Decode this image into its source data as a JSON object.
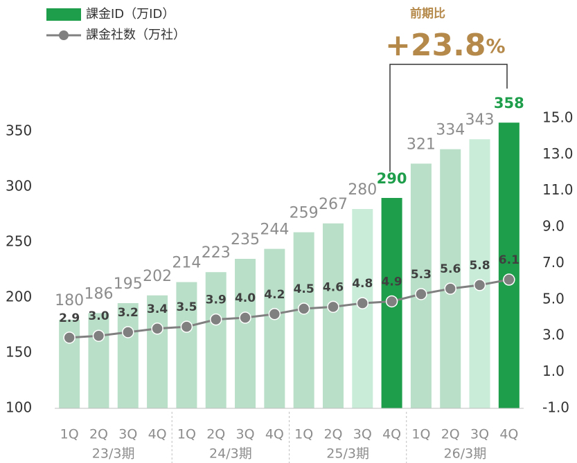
{
  "chart_data": {
    "type": "bar_line",
    "categories": [
      "1Q",
      "2Q",
      "3Q",
      "4Q",
      "1Q",
      "2Q",
      "3Q",
      "4Q",
      "1Q",
      "2Q",
      "3Q",
      "4Q",
      "1Q",
      "2Q",
      "3Q",
      "4Q"
    ],
    "groups": [
      "23/3期",
      "24/3期",
      "25/3期",
      "26/3期"
    ],
    "series": [
      {
        "name": "課金ID（万ID）",
        "color": "#1e9e4a",
        "values": [
          180,
          186,
          195,
          202,
          214,
          223,
          235,
          244,
          259,
          267,
          280,
          290,
          321,
          334,
          343,
          358
        ],
        "colors": [
          "#b9dfc8",
          "#b9dfc8",
          "#b9dfc8",
          "#b9dfc8",
          "#b9dfc8",
          "#b9dfc8",
          "#b9dfc8",
          "#b9dfc8",
          "#b9dfc8",
          "#b9dfc8",
          "#c8ecd8",
          "#1e9e4a",
          "#b9dfc8",
          "#b9dfc8",
          "#c8ecd8",
          "#1e9e4a"
        ],
        "label_colors": [
          "#8c8c8c",
          "#8c8c8c",
          "#8c8c8c",
          "#8c8c8c",
          "#8c8c8c",
          "#8c8c8c",
          "#8c8c8c",
          "#8c8c8c",
          "#8c8c8c",
          "#8c8c8c",
          "#8c8c8c",
          "#1e9e4a",
          "#8c8c8c",
          "#8c8c8c",
          "#8c8c8c",
          "#1e9e4a"
        ]
      },
      {
        "name": "課金社数（万社）",
        "color": "#808080",
        "axis": "y2",
        "values": [
          2.9,
          3.0,
          3.2,
          3.4,
          3.5,
          3.9,
          4.0,
          4.2,
          4.5,
          4.6,
          4.8,
          4.9,
          5.3,
          5.6,
          5.8,
          6.1
        ],
        "value_labels": [
          "2.9",
          "3.0",
          "3.2",
          "3.4",
          "3.5",
          "3.9",
          "4.0",
          "4.2",
          "4.5",
          "4.6",
          "4.8",
          "4.9",
          "5.3",
          "5.6",
          "5.8",
          "6.1"
        ]
      }
    ],
    "ylim": [
      100,
      375
    ],
    "yticks": [
      100,
      150,
      200,
      250,
      300,
      350
    ],
    "y2lim": [
      -1,
      15.8
    ],
    "y2ticks": [
      {
        "value": -1,
        "label": "-1.0"
      },
      {
        "value": 1,
        "label": "1.0"
      },
      {
        "value": 3,
        "label": "3.0"
      },
      {
        "value": 5,
        "label": "5.0"
      },
      {
        "value": 7,
        "label": "7.0"
      },
      {
        "value": 9,
        "label": "9.0"
      },
      {
        "value": 11,
        "label": "11.0"
      },
      {
        "value": 13,
        "label": "13.0"
      },
      {
        "value": 15,
        "label": "15.0"
      }
    ],
    "annotation": {
      "label": "前期比",
      "text": "+23.8",
      "unit": "%",
      "color": "#b5894a"
    }
  }
}
